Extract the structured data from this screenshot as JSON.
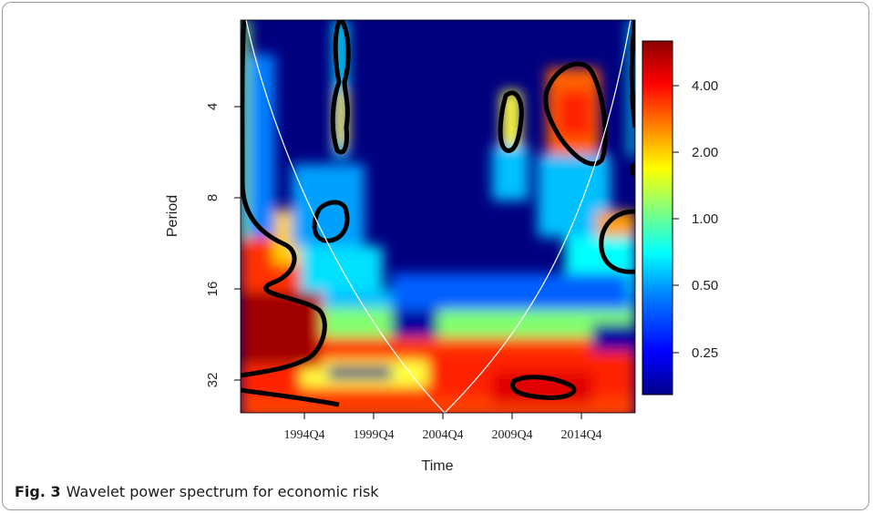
{
  "figure": {
    "label": "Fig. 3",
    "caption": "Wavelet power spectrum for economic risk"
  },
  "chart_data": {
    "type": "heatmap",
    "xlabel": "Time",
    "ylabel": "Period",
    "x_ticks": [
      "1994Q4",
      "1999Q4",
      "2004Q4",
      "2009Q4",
      "2014Q4"
    ],
    "y_ticks": [
      "4",
      "8",
      "16",
      "32"
    ],
    "y_scale": "log2",
    "colorbar": {
      "ticks": [
        "4.00",
        "2.00",
        "1.00",
        "0.50",
        "0.25"
      ],
      "colormap": [
        "#00008b",
        "#0000ff",
        "#0080ff",
        "#00ffff",
        "#80ff80",
        "#ffff00",
        "#ff8000",
        "#ff0000",
        "#8b0000"
      ]
    },
    "colors": {
      "low": "#00007f",
      "high": "#7f0000",
      "significance_contour": "#000000",
      "cone_of_influence": "#ffffff"
    }
  }
}
